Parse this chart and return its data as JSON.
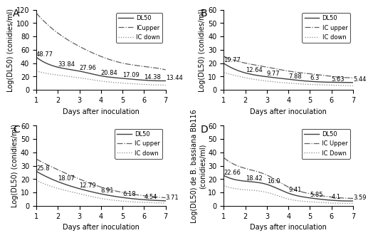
{
  "panels": [
    {
      "label": "A",
      "ylabel": "Log(DL50) (conidies/ml)",
      "ylim": [
        0,
        120
      ],
      "yticks": [
        0,
        20,
        40,
        60,
        80,
        100,
        120
      ],
      "days": [
        1,
        2,
        3,
        4,
        5,
        6,
        7
      ],
      "dl50": [
        48.77,
        33.84,
        27.96,
        20.84,
        17.09,
        14.38,
        13.44
      ],
      "ic_upper": [
        115,
        85,
        65,
        50,
        40,
        35,
        30
      ],
      "ic_down": [
        28,
        22,
        18,
        13,
        10,
        8,
        7
      ],
      "annotations": [
        48.77,
        33.84,
        27.96,
        20.84,
        17.09,
        14.38,
        13.44
      ],
      "legend_labels": [
        "DL50",
        "ICupper",
        "IC down"
      ]
    },
    {
      "label": "B",
      "ylabel": "Log(DL50) (conidies/ml)",
      "ylim": [
        0,
        60
      ],
      "yticks": [
        0,
        10,
        20,
        30,
        40,
        50,
        60
      ],
      "days": [
        1,
        2,
        3,
        4,
        5,
        6,
        7
      ],
      "dl50": [
        19.77,
        12.64,
        9.77,
        7.88,
        6.3,
        5.63,
        5.44
      ],
      "ic_upper": [
        25,
        20,
        17,
        14,
        12,
        10,
        9
      ],
      "ic_down": [
        13,
        9,
        6.5,
        5,
        4,
        3.5,
        3
      ],
      "annotations": [
        19.77,
        12.64,
        9.77,
        7.88,
        6.3,
        5.63,
        5.44
      ],
      "legend_labels": [
        "DL50",
        "IC upper",
        "IC down"
      ]
    },
    {
      "label": "C",
      "ylabel": "Log(DL50) (conidies/ml)",
      "ylim": [
        0,
        60
      ],
      "yticks": [
        0,
        10,
        20,
        30,
        40,
        50,
        60
      ],
      "days": [
        1,
        2,
        3,
        4,
        5,
        6,
        7
      ],
      "dl50": [
        25.8,
        18.07,
        12.79,
        8.91,
        6.18,
        4.54,
        3.71
      ],
      "ic_upper": [
        35,
        27,
        20,
        14,
        10,
        7.5,
        6
      ],
      "ic_down": [
        19,
        13,
        9,
        5.5,
        3.5,
        2.5,
        2
      ],
      "annotations": [
        25.8,
        18.07,
        12.79,
        8.91,
        6.18,
        4.54,
        3.71
      ],
      "legend_labels": [
        "DL50",
        "IC upper",
        "IC down"
      ]
    },
    {
      "label": "D",
      "ylabel": "Log(DL50) de B. bassiana Bb116\n(conidies/ml)",
      "ylim": [
        0,
        60
      ],
      "yticks": [
        0,
        10,
        20,
        30,
        40,
        50,
        60
      ],
      "days": [
        1,
        2,
        3,
        4,
        5,
        6,
        7
      ],
      "dl50": [
        22.66,
        18.42,
        16.0,
        9.41,
        5.85,
        4.1,
        3.59
      ],
      "ic_upper": [
        36,
        28,
        23,
        14,
        9,
        6.5,
        5.5
      ],
      "ic_down": [
        15,
        12,
        10,
        5,
        3,
        2,
        1.8
      ],
      "annotations": [
        22.66,
        18.42,
        16.0,
        9.41,
        5.85,
        4.1,
        3.59
      ],
      "legend_labels": [
        "DL50",
        "IC Upper",
        "IC Down"
      ]
    }
  ],
  "xlabel": "Days after inoculation",
  "line_color_dl50": "#404040",
  "line_color_upper": "#606060",
  "line_color_down": "#888888",
  "bg_color": "#ffffff",
  "annotation_fontsize": 6,
  "axis_fontsize": 7,
  "label_fontsize": 7,
  "legend_fontsize": 6
}
